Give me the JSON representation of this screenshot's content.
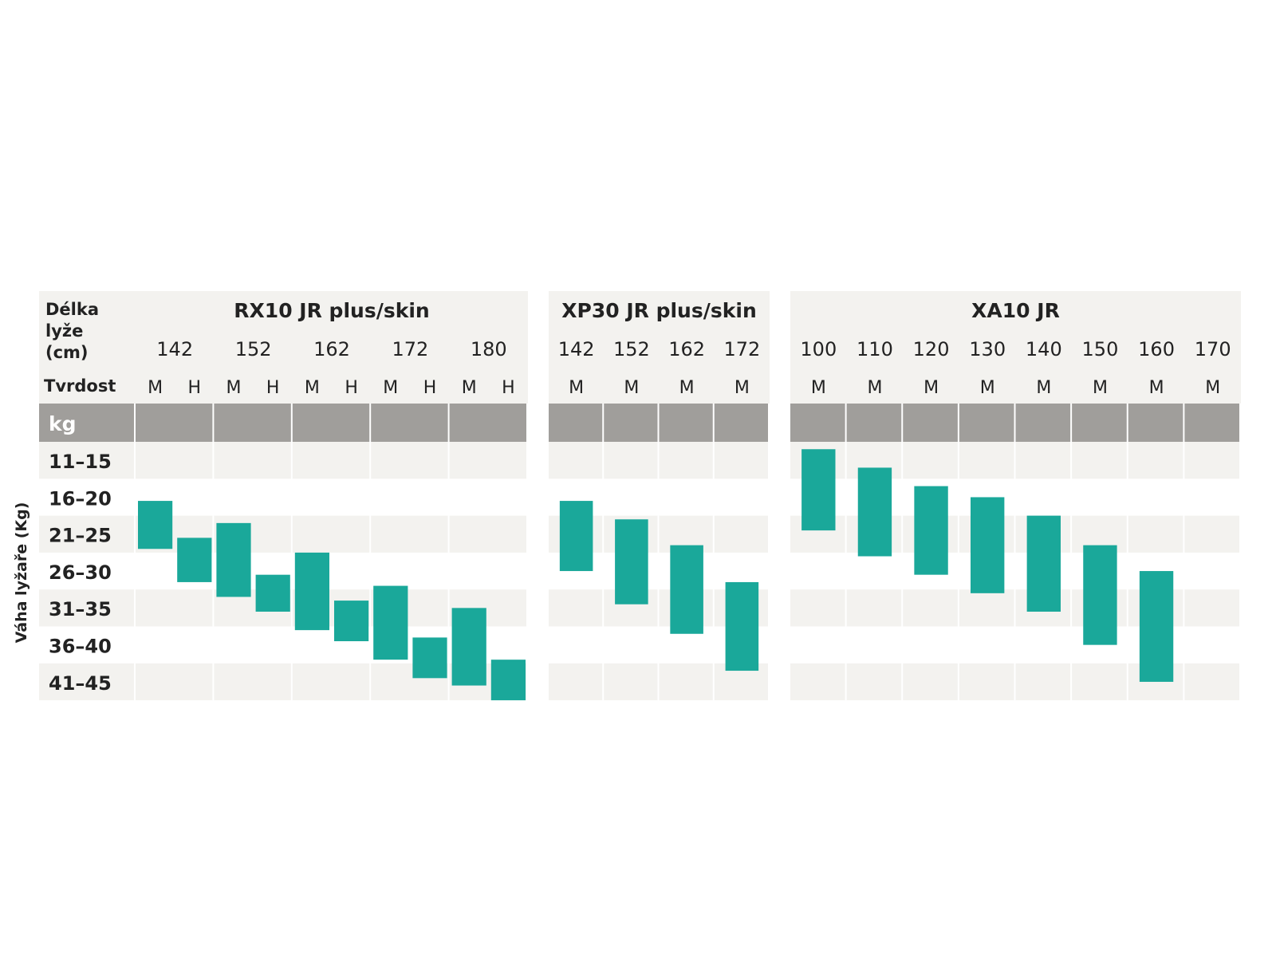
{
  "chart_data": {
    "type": "table",
    "corner_label_lines": [
      "Délka",
      "lyže",
      "(cm)"
    ],
    "hardness_label": "Tvrdost",
    "unit_label": "kg",
    "ylabel": "Váha lyžaře (Kg)",
    "weight_ranges": [
      "11–15",
      "16–20",
      "21–25",
      "26–30",
      "31–35",
      "36–40",
      "41–45"
    ],
    "colors": {
      "bar": "#1aa89a",
      "header_band": "#a09e9b",
      "row_light": "#f3f2ef",
      "cell_divider": "#ffffff",
      "text": "#222222"
    },
    "products": [
      {
        "name": "RX10 JR plus/skin",
        "lengths": [
          "142",
          "152",
          "162",
          "172",
          "180"
        ],
        "hardness": [
          "M",
          "H"
        ],
        "bars": [
          {
            "length": "142",
            "hardness": "M",
            "kg_from": 19,
            "kg_to": 25.5
          },
          {
            "length": "142",
            "hardness": "H",
            "kg_from": 24,
            "kg_to": 30
          },
          {
            "length": "152",
            "hardness": "M",
            "kg_from": 22,
            "kg_to": 32
          },
          {
            "length": "152",
            "hardness": "H",
            "kg_from": 29,
            "kg_to": 34
          },
          {
            "length": "162",
            "hardness": "M",
            "kg_from": 26,
            "kg_to": 36.5
          },
          {
            "length": "162",
            "hardness": "H",
            "kg_from": 32.5,
            "kg_to": 38
          },
          {
            "length": "172",
            "hardness": "M",
            "kg_from": 30.5,
            "kg_to": 40.5
          },
          {
            "length": "172",
            "hardness": "H",
            "kg_from": 37.5,
            "kg_to": 43
          },
          {
            "length": "180",
            "hardness": "M",
            "kg_from": 33.5,
            "kg_to": 44
          },
          {
            "length": "180",
            "hardness": "H",
            "kg_from": 40.5,
            "kg_to": 46
          }
        ]
      },
      {
        "name": "XP30 JR plus/skin",
        "lengths": [
          "142",
          "152",
          "162",
          "172"
        ],
        "hardness": [
          "M"
        ],
        "bars": [
          {
            "length": "142",
            "hardness": "M",
            "kg_from": 19,
            "kg_to": 28.5
          },
          {
            "length": "152",
            "hardness": "M",
            "kg_from": 21.5,
            "kg_to": 33
          },
          {
            "length": "162",
            "hardness": "M",
            "kg_from": 25,
            "kg_to": 37
          },
          {
            "length": "172",
            "hardness": "M",
            "kg_from": 30,
            "kg_to": 42
          }
        ]
      },
      {
        "name": "XA10 JR",
        "lengths": [
          "100",
          "110",
          "120",
          "130",
          "140",
          "150",
          "160",
          "170"
        ],
        "hardness": [
          "M"
        ],
        "bars": [
          {
            "length": "100",
            "hardness": "M",
            "kg_from": 12,
            "kg_to": 23
          },
          {
            "length": "110",
            "hardness": "M",
            "kg_from": 14.5,
            "kg_to": 26.5
          },
          {
            "length": "120",
            "hardness": "M",
            "kg_from": 17,
            "kg_to": 29
          },
          {
            "length": "130",
            "hardness": "M",
            "kg_from": 18.5,
            "kg_to": 31.5
          },
          {
            "length": "140",
            "hardness": "M",
            "kg_from": 21,
            "kg_to": 34
          },
          {
            "length": "150",
            "hardness": "M",
            "kg_from": 25,
            "kg_to": 38.5
          },
          {
            "length": "160",
            "hardness": "M",
            "kg_from": 28.5,
            "kg_to": 43.5
          }
        ]
      }
    ]
  }
}
